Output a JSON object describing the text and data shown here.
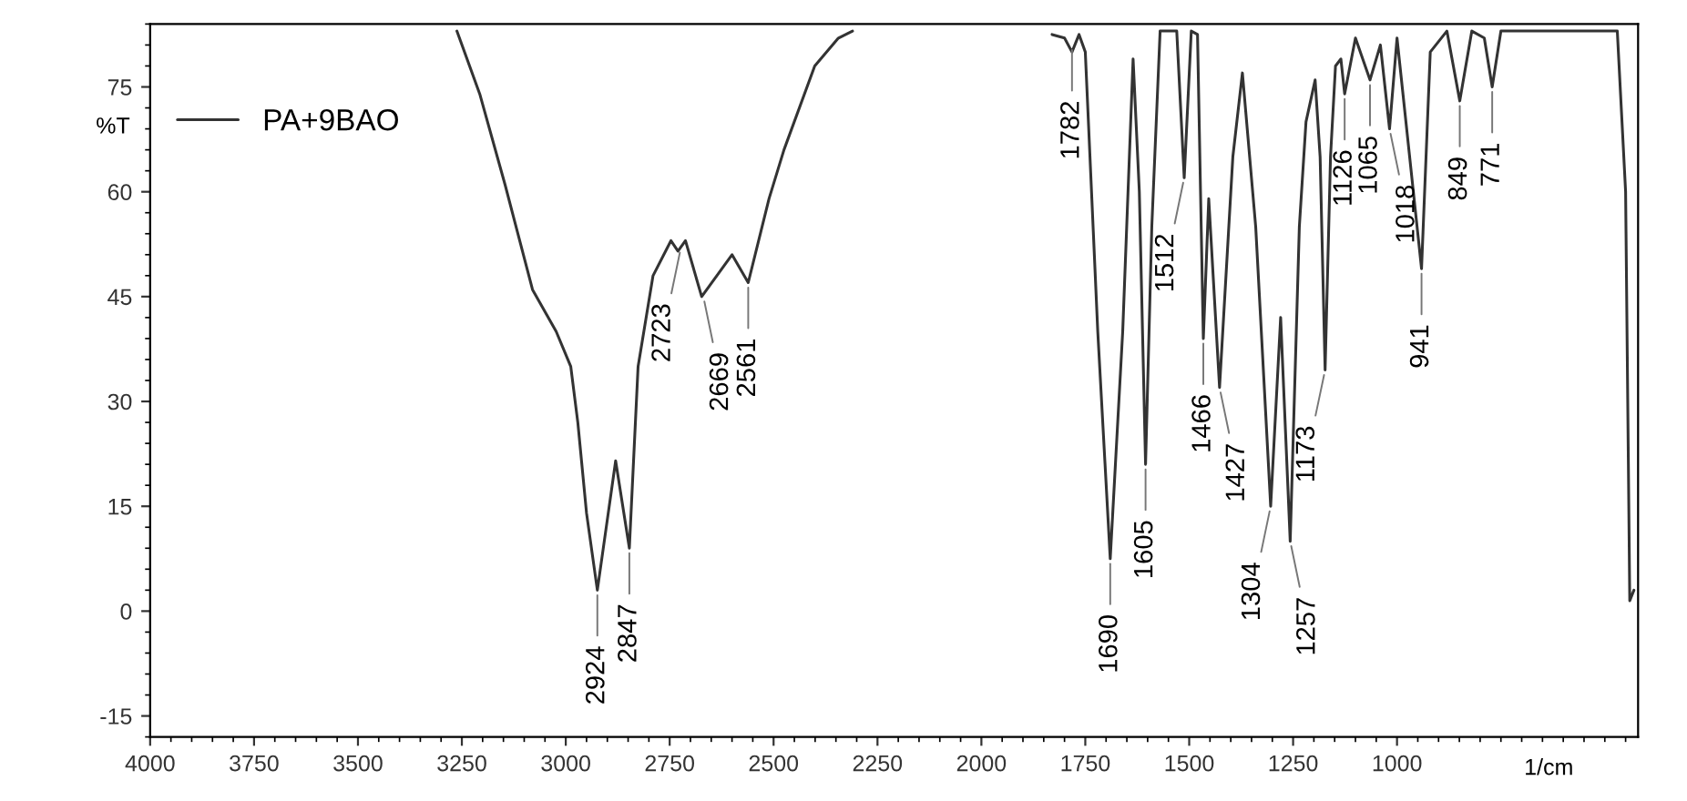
{
  "chart_data": {
    "type": "line",
    "xlabel": "1/cm",
    "ylabel": "%T",
    "xlim": [
      4000,
      420
    ],
    "ylim": [
      -18,
      84
    ],
    "xticks": [
      4000,
      3750,
      3500,
      3250,
      3000,
      2750,
      2500,
      2250,
      2000,
      1750,
      1500,
      1250,
      1000
    ],
    "yticks": [
      -15,
      0,
      15,
      30,
      45,
      60,
      75
    ],
    "grid": false,
    "legend": "top left",
    "marker": "none",
    "line_style": "solid",
    "series": [
      {
        "name": "PA+9BAO",
        "color": "#333333",
        "x": [
          3262,
          3207,
          3146,
          3080,
          3023,
          2988,
          2971,
          2950,
          2924,
          2880,
          2847,
          2826,
          2790,
          2747,
          2730,
          2712,
          2673,
          2600,
          2561,
          2511,
          2475,
          2401,
          2344,
          2310,
          2000,
          1830,
          1800,
          1782,
          1765,
          1750,
          1720,
          1690,
          1660,
          1635,
          1620,
          1605,
          1590,
          1570,
          1530,
          1512,
          1495,
          1480,
          1466,
          1453,
          1427,
          1395,
          1372,
          1340,
          1304,
          1280,
          1257,
          1235,
          1219,
          1197,
          1185,
          1173,
          1160,
          1148,
          1135,
          1126,
          1100,
          1065,
          1040,
          1018,
          1000,
          941,
          920,
          880,
          849,
          820,
          790,
          771,
          750,
          470,
          450,
          440,
          430
        ],
        "values": [
          83,
          74,
          61,
          46,
          40,
          35,
          27,
          14,
          3,
          21.5,
          9,
          35,
          48,
          53,
          51.5,
          53,
          45,
          51,
          47,
          59,
          66,
          78,
          82,
          83,
          null,
          82.5,
          82,
          80,
          82.5,
          80,
          40,
          7.5,
          40,
          79,
          60,
          21,
          55,
          83,
          83,
          62,
          83,
          82.5,
          39,
          59,
          32,
          65,
          77,
          55,
          15,
          42,
          10,
          55,
          70,
          76,
          65,
          34.5,
          65,
          78,
          79,
          74,
          82,
          76,
          81,
          69,
          82,
          49,
          80,
          83,
          73,
          83,
          82,
          75,
          83,
          83,
          60,
          1.5,
          3
        ]
      }
    ],
    "annotations": [
      {
        "text": "2924",
        "x": 2924,
        "y": 3
      },
      {
        "text": "2847",
        "x": 2847,
        "y": 9
      },
      {
        "text": "2723",
        "x": 2723,
        "y": 52
      },
      {
        "text": "2669",
        "x": 2669,
        "y": 45
      },
      {
        "text": "2561",
        "x": 2561,
        "y": 47
      },
      {
        "text": "1782",
        "x": 1782,
        "y": 81
      },
      {
        "text": "1690",
        "x": 1690,
        "y": 7.5
      },
      {
        "text": "1605",
        "x": 1605,
        "y": 21
      },
      {
        "text": "1512",
        "x": 1512,
        "y": 62
      },
      {
        "text": "1466",
        "x": 1466,
        "y": 39
      },
      {
        "text": "1427",
        "x": 1427,
        "y": 32
      },
      {
        "text": "1304",
        "x": 1304,
        "y": 15
      },
      {
        "text": "1257",
        "x": 1257,
        "y": 10
      },
      {
        "text": "1173",
        "x": 1173,
        "y": 34.5
      },
      {
        "text": "1126",
        "x": 1126,
        "y": 74
      },
      {
        "text": "1065",
        "x": 1065,
        "y": 76
      },
      {
        "text": "1018",
        "x": 1018,
        "y": 69
      },
      {
        "text": "941",
        "x": 941,
        "y": 49
      },
      {
        "text": "849",
        "x": 849,
        "y": 73
      },
      {
        "text": "771",
        "x": 771,
        "y": 75
      }
    ]
  }
}
